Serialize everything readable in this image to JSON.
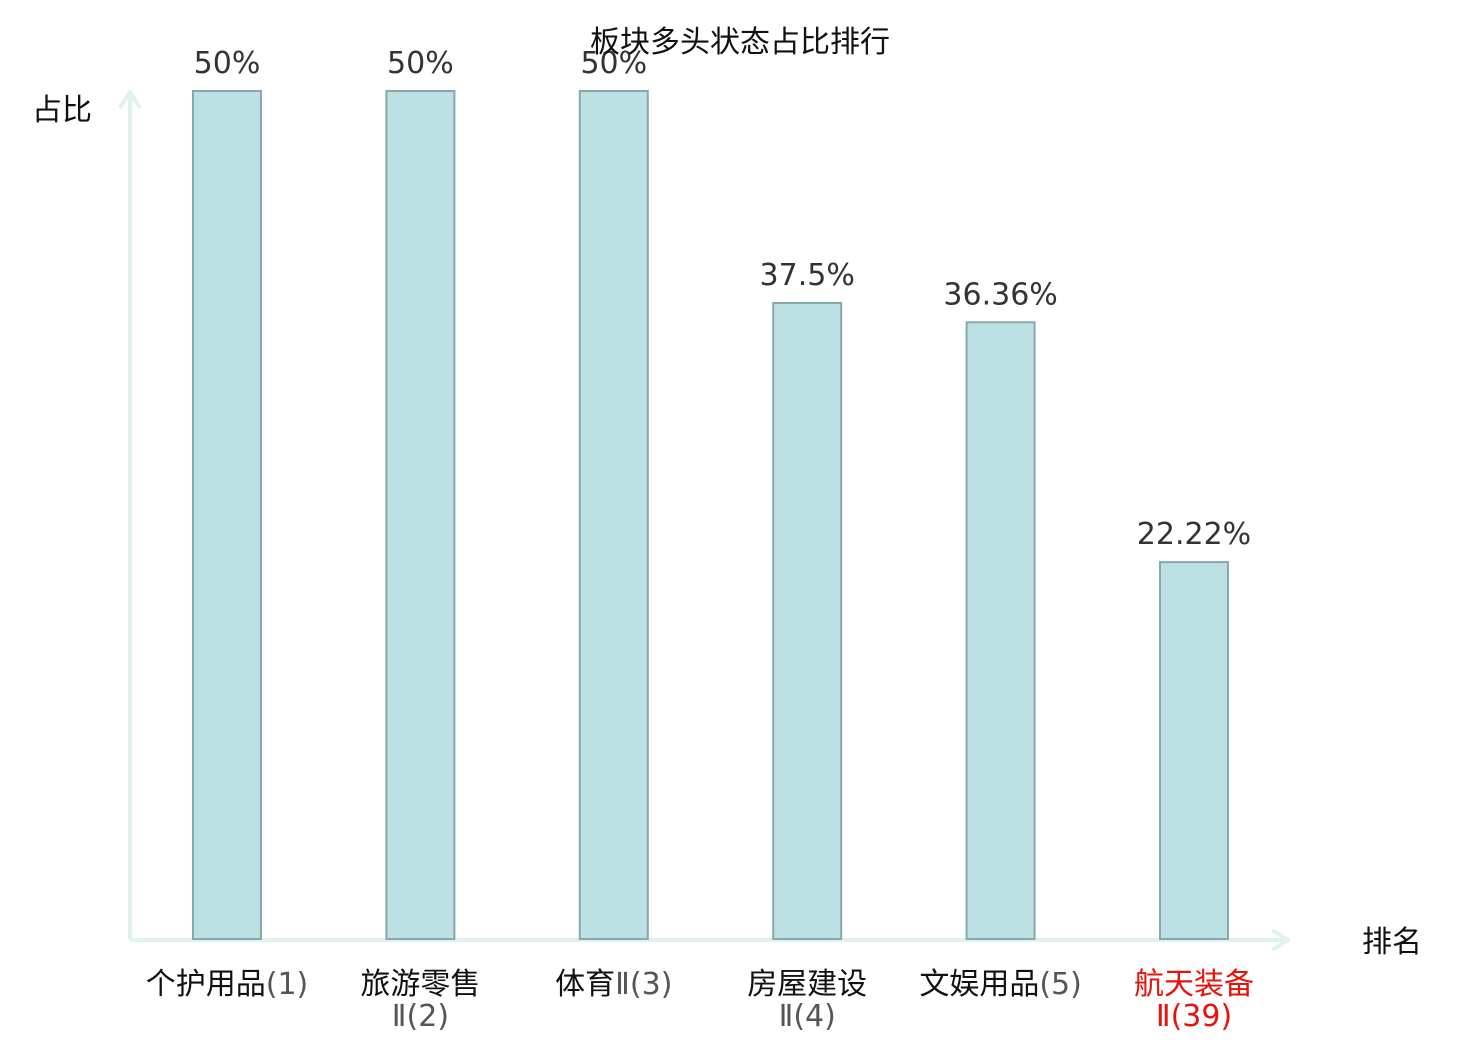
{
  "chart_data": {
    "type": "bar",
    "title": "板块多头状态占比排行",
    "ylabel": "占比",
    "xlabel": "排名",
    "categories": [
      {
        "name": "个护用品",
        "rank": "(1)",
        "highlight": false
      },
      {
        "name": "旅游零售",
        "rank": "Ⅱ(2)",
        "highlight": false
      },
      {
        "name": "体育",
        "rank": "Ⅱ(3)",
        "highlight": false
      },
      {
        "name": "房屋建设",
        "rank": "Ⅱ(4)",
        "highlight": false
      },
      {
        "name": "文娱用品",
        "rank": "(5)",
        "highlight": false
      },
      {
        "name": "航天装备",
        "rank": "Ⅱ(39)",
        "highlight": true
      }
    ],
    "values": [
      50,
      50,
      50,
      37.5,
      36.36,
      22.22
    ],
    "value_labels": [
      "50%",
      "50%",
      "50%",
      "37.5%",
      "36.36%",
      "22.22%"
    ],
    "ylim": [
      0,
      50
    ],
    "grid": false,
    "colors": {
      "bar_fill": "#bce0e3",
      "bar_stroke": "#86a9ab",
      "axis": "#dff2ef",
      "text": "#333333",
      "highlight": "#e8120c"
    }
  }
}
